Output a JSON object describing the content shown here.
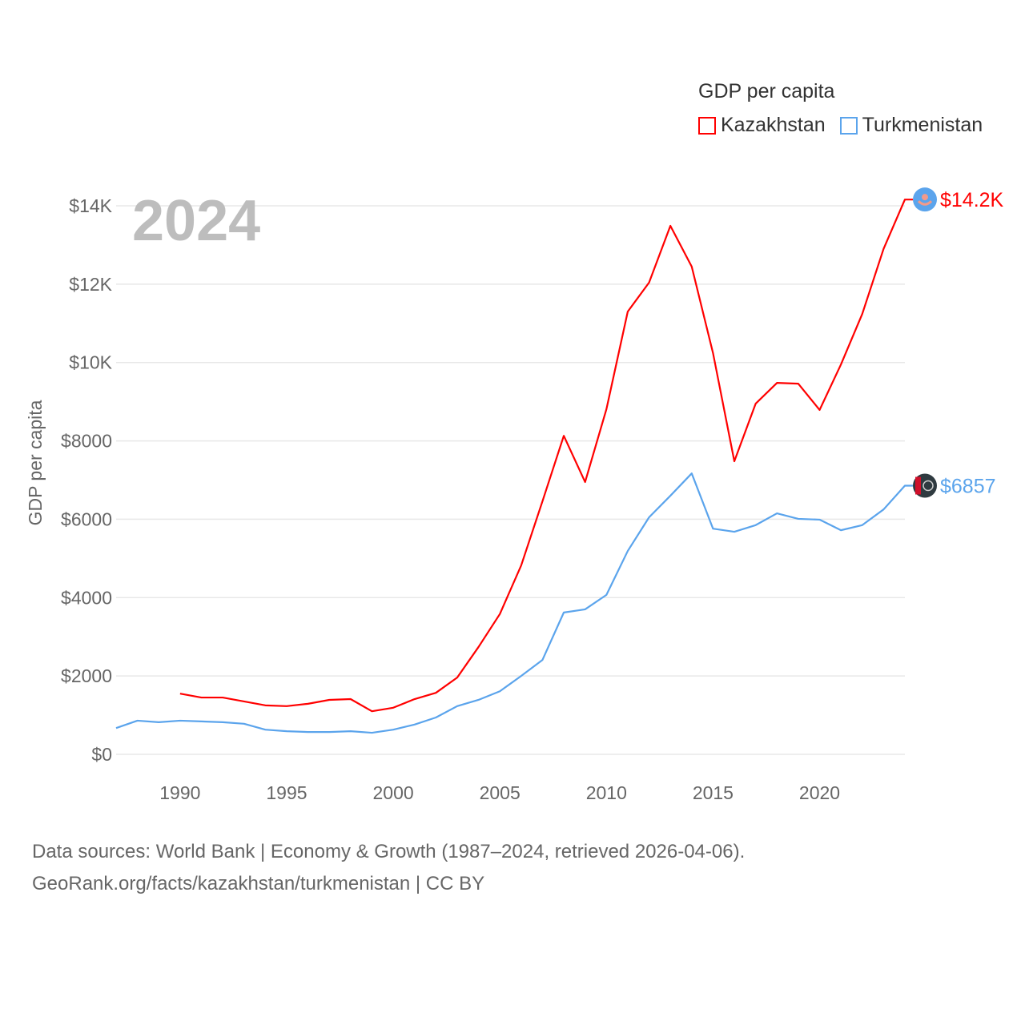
{
  "chart_data": {
    "type": "line",
    "title": "GDP per capita",
    "ylabel": "GDP per capita",
    "xlabel": "",
    "year_label": "2024",
    "ylim": [
      0,
      14000
    ],
    "xlim": [
      1987,
      2024
    ],
    "yticks": [
      0,
      2000,
      4000,
      6000,
      8000,
      10000,
      12000,
      14000
    ],
    "ytick_labels": [
      "$0",
      "$2000",
      "$4000",
      "$6000",
      "$8000",
      "$10K",
      "$12K",
      "$14K"
    ],
    "xticks": [
      1990,
      1995,
      2000,
      2005,
      2010,
      2015,
      2020
    ],
    "xtick_labels": [
      "1990",
      "1995",
      "2000",
      "2005",
      "2010",
      "2015",
      "2020"
    ],
    "legend_placement": "top-right",
    "series": [
      {
        "name": "Kazakhstan",
        "color": "#ff0000",
        "end_label": "$14.2K",
        "start_year": 1990,
        "values": [
          1550,
          1450,
          1450,
          1350,
          1250,
          1230,
          1290,
          1390,
          1410,
          1100,
          1190,
          1410,
          1570,
          1960,
          2740,
          3580,
          4820,
          6460,
          8130,
          6950,
          8810,
          11300,
          12040,
          13490,
          12450,
          10240,
          7480,
          8950,
          9480,
          9460,
          8790,
          9950,
          11240,
          12900,
          14160
        ]
      },
      {
        "name": "Turkmenistan",
        "color": "#5ba4ec",
        "end_label": "$6857",
        "start_year": 1987,
        "values": [
          670,
          860,
          820,
          860,
          840,
          820,
          780,
          630,
          590,
          570,
          570,
          590,
          550,
          630,
          760,
          940,
          1230,
          1390,
          1610,
          2000,
          2410,
          3620,
          3700,
          4070,
          5190,
          6050,
          6600,
          7170,
          5760,
          5680,
          5850,
          6150,
          6010,
          5990,
          5720,
          5850,
          6250,
          6857
        ]
      }
    ]
  },
  "footer": {
    "line1": "Data sources: World Bank | Economy & Growth (1987–2024, retrieved 2026-04-06).",
    "line2": "GeoRank.org/facts/kazakhstan/turkmenistan | CC BY"
  }
}
